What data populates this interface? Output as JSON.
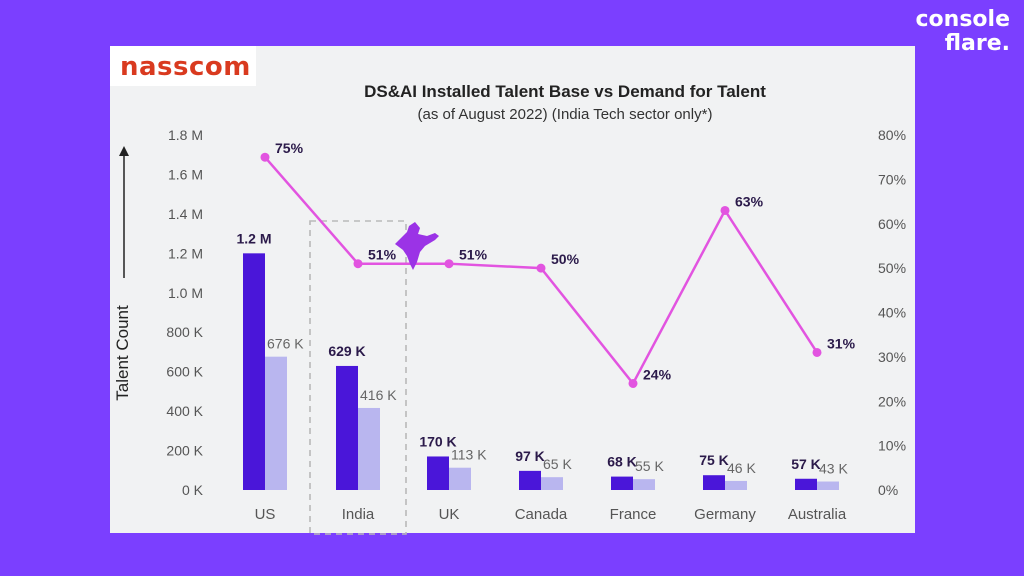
{
  "brand": {
    "line1": "console",
    "line2": "flare."
  },
  "logo": {
    "text": "nasscom"
  },
  "colors": {
    "background": "#7b3fff",
    "panel": "#f1f2f3",
    "supply": "#4a16d9",
    "demand": "#b9b6ef",
    "line": "#e254e0",
    "logo": "#d93a1f"
  },
  "chart_data": {
    "type": "bar",
    "title": "DS&AI Installed Talent Base vs Demand for Talent",
    "subtitle": "(as of August 2022) (India Tech sector only*)",
    "ylabel": "Talent Count",
    "categories": [
      "US",
      "India",
      "UK",
      "Canada",
      "France",
      "Germany",
      "Australia"
    ],
    "series": [
      {
        "values": [
          1200000,
          629000,
          170000,
          97000,
          68000,
          75000,
          57000
        ],
        "labels": [
          "1.2 M",
          "629 K",
          "170 K",
          "97 K",
          "68 K",
          "75 K",
          "57 K"
        ]
      },
      {
        "values": [
          676000,
          416000,
          113000,
          65000,
          55000,
          46000,
          43000
        ],
        "labels": [
          "676 K",
          "416 K",
          "113 K",
          "65 K",
          "55 K",
          "46 K",
          "43 K"
        ]
      },
      {
        "type": "line",
        "axis": "right",
        "values": [
          75,
          51,
          51,
          50,
          24,
          63,
          31
        ],
        "labels": [
          "75%",
          "51%",
          "51%",
          "50%",
          "24%",
          "63%",
          "31%"
        ]
      }
    ],
    "ylim": [
      0,
      1800000
    ],
    "y2lim": [
      0,
      80
    ],
    "y_ticks": [
      "0 K",
      "200 K",
      "400 K",
      "600 K",
      "800 K",
      "1.0 M",
      "1.2 M",
      "1.4 M",
      "1.6 M",
      "1.8 M"
    ],
    "y2_ticks": [
      "0%",
      "10%",
      "20%",
      "30%",
      "40%",
      "50%",
      "60%",
      "70%",
      "80%"
    ],
    "highlight_category": "India",
    "grid": false
  }
}
